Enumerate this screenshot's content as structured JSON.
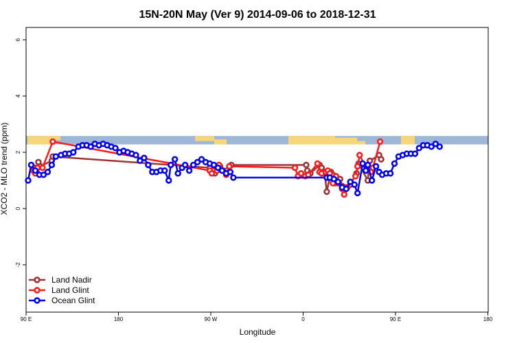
{
  "chart_data": {
    "type": "line",
    "title": "15N-20N May (Ver 9)   2014-09-06 to 2018-12-31",
    "xlabel": "Longitude",
    "ylabel": "XCO2 - MLO trend (ppm)",
    "xlim": [
      90,
      450
    ],
    "ylim": [
      -3.5,
      6.3
    ],
    "x_ticks": [
      {
        "value": 90,
        "label": "90 E"
      },
      {
        "value": 180,
        "label": "180"
      },
      {
        "value": 270,
        "label": "90 W"
      },
      {
        "value": 360,
        "label": "0"
      },
      {
        "value": 450,
        "label": "90 E"
      },
      {
        "value": 540,
        "label": "180"
      }
    ],
    "y_ticks": [
      {
        "value": -2,
        "label": "-2"
      },
      {
        "value": 0,
        "label": "0"
      },
      {
        "value": 2,
        "label": "2"
      },
      {
        "value": 4,
        "label": "4"
      },
      {
        "value": 6,
        "label": "6"
      }
    ],
    "legend_position": "bottom-left",
    "grid": false,
    "land_map_strip": {
      "y_range": [
        2.28,
        2.58
      ],
      "ocean_color": "#9fb7d6",
      "land_color": "#f7d57a"
    },
    "series": [
      {
        "name": "Land Nadir",
        "color": "#9b3434",
        "points": [
          [
            98,
            1.45
          ],
          [
            100,
            1.35
          ],
          [
            102,
            1.65
          ],
          [
            104,
            1.5
          ],
          [
            115,
            1.7
          ],
          [
            116,
            1.85
          ],
          [
            269,
            1.45
          ],
          [
            272,
            1.35
          ],
          [
            274,
            1.25
          ],
          [
            279,
            1.5
          ],
          [
            282,
            1.35
          ],
          [
            290,
            1.55
          ],
          [
            363,
            1.55
          ],
          [
            364,
            1.35
          ],
          [
            367,
            1.25
          ],
          [
            376,
            1.55
          ],
          [
            378,
            1.45
          ],
          [
            381,
            1.25
          ],
          [
            383,
            0.6
          ],
          [
            387,
            1.3
          ],
          [
            389,
            1.2
          ],
          [
            391,
            0.9
          ],
          [
            393,
            1.05
          ],
          [
            396,
            1.05
          ],
          [
            398,
            0.8
          ],
          [
            402,
            0.75
          ],
          [
            406,
            0.85
          ],
          [
            412,
            1.25
          ],
          [
            414,
            1.6
          ],
          [
            423,
            1.0
          ],
          [
            425,
            1.7
          ],
          [
            434,
            1.9
          ],
          [
            436,
            1.75
          ]
        ]
      },
      {
        "name": "Land Glint",
        "color": "#ff1a1a",
        "points": [
          [
            97,
            1.35
          ],
          [
            99,
            1.25
          ],
          [
            101,
            1.45
          ],
          [
            106,
            1.45
          ],
          [
            116,
            2.38
          ],
          [
            269,
            1.35
          ],
          [
            271,
            1.25
          ],
          [
            276,
            1.35
          ],
          [
            278,
            1.55
          ],
          [
            285,
            1.2
          ],
          [
            288,
            1.5
          ],
          [
            352,
            1.45
          ],
          [
            355,
            1.15
          ],
          [
            358,
            1.25
          ],
          [
            362,
            1.15
          ],
          [
            365,
            1.2
          ],
          [
            374,
            1.6
          ],
          [
            376,
            1.3
          ],
          [
            378,
            1.25
          ],
          [
            382,
            1.3
          ],
          [
            384,
            1.35
          ],
          [
            386,
            1.25
          ],
          [
            389,
            0.9
          ],
          [
            392,
            1.15
          ],
          [
            394,
            0.9
          ],
          [
            398,
            0.7
          ],
          [
            400,
            0.5
          ],
          [
            403,
            0.75
          ],
          [
            411,
            1.15
          ],
          [
            413,
            1.5
          ],
          [
            415,
            1.9
          ],
          [
            423,
            1.35
          ],
          [
            426,
            1.3
          ],
          [
            428,
            1.45
          ],
          [
            435,
            2.38
          ]
        ]
      },
      {
        "name": "Ocean Glint",
        "color": "#0000ee",
        "points": [
          [
            92,
            1.0
          ],
          [
            95,
            1.55
          ],
          [
            99,
            1.35
          ],
          [
            103,
            1.2
          ],
          [
            107,
            1.2
          ],
          [
            111,
            1.3
          ],
          [
            115,
            1.55
          ],
          [
            119,
            1.85
          ],
          [
            124,
            1.9
          ],
          [
            128,
            1.95
          ],
          [
            132,
            1.95
          ],
          [
            136,
            2.0
          ],
          [
            141,
            2.2
          ],
          [
            145,
            2.25
          ],
          [
            149,
            2.25
          ],
          [
            153,
            2.2
          ],
          [
            157,
            2.3
          ],
          [
            161,
            2.25
          ],
          [
            165,
            2.3
          ],
          [
            169,
            2.25
          ],
          [
            173,
            2.2
          ],
          [
            177,
            2.15
          ],
          [
            181,
            2.0
          ],
          [
            185,
            2.05
          ],
          [
            189,
            2.0
          ],
          [
            193,
            1.95
          ],
          [
            197,
            1.9
          ],
          [
            201,
            1.7
          ],
          [
            205,
            1.8
          ],
          [
            209,
            1.55
          ],
          [
            213,
            1.3
          ],
          [
            217,
            1.3
          ],
          [
            221,
            1.35
          ],
          [
            225,
            1.35
          ],
          [
            229,
            1.0
          ],
          [
            231,
            1.55
          ],
          [
            235,
            1.75
          ],
          [
            238,
            1.25
          ],
          [
            242,
            1.45
          ],
          [
            245,
            1.55
          ],
          [
            249,
            1.35
          ],
          [
            253,
            1.55
          ],
          [
            257,
            1.65
          ],
          [
            261,
            1.75
          ],
          [
            265,
            1.65
          ],
          [
            269,
            1.6
          ],
          [
            273,
            1.55
          ],
          [
            277,
            1.45
          ],
          [
            281,
            1.35
          ],
          [
            285,
            1.25
          ],
          [
            289,
            1.3
          ],
          [
            292,
            1.1
          ],
          [
            383,
            1.1
          ],
          [
            386,
            1.1
          ],
          [
            390,
            1.05
          ],
          [
            394,
            0.95
          ],
          [
            398,
            0.75
          ],
          [
            402,
            0.7
          ],
          [
            406,
            0.95
          ],
          [
            410,
            0.85
          ],
          [
            413,
            0.55
          ],
          [
            418,
            1.6
          ],
          [
            421,
            1.35
          ],
          [
            423,
            1.55
          ],
          [
            427,
            1.0
          ],
          [
            431,
            1.5
          ],
          [
            434,
            1.3
          ],
          [
            437,
            1.2
          ],
          [
            441,
            1.25
          ],
          [
            445,
            1.25
          ],
          [
            449,
            1.6
          ],
          [
            453,
            1.85
          ],
          [
            457,
            1.9
          ],
          [
            461,
            1.95
          ],
          [
            465,
            1.95
          ],
          [
            469,
            1.95
          ],
          [
            473,
            2.15
          ],
          [
            477,
            2.25
          ],
          [
            481,
            2.25
          ],
          [
            485,
            2.2
          ],
          [
            489,
            2.3
          ],
          [
            493,
            2.2
          ]
        ]
      }
    ]
  }
}
